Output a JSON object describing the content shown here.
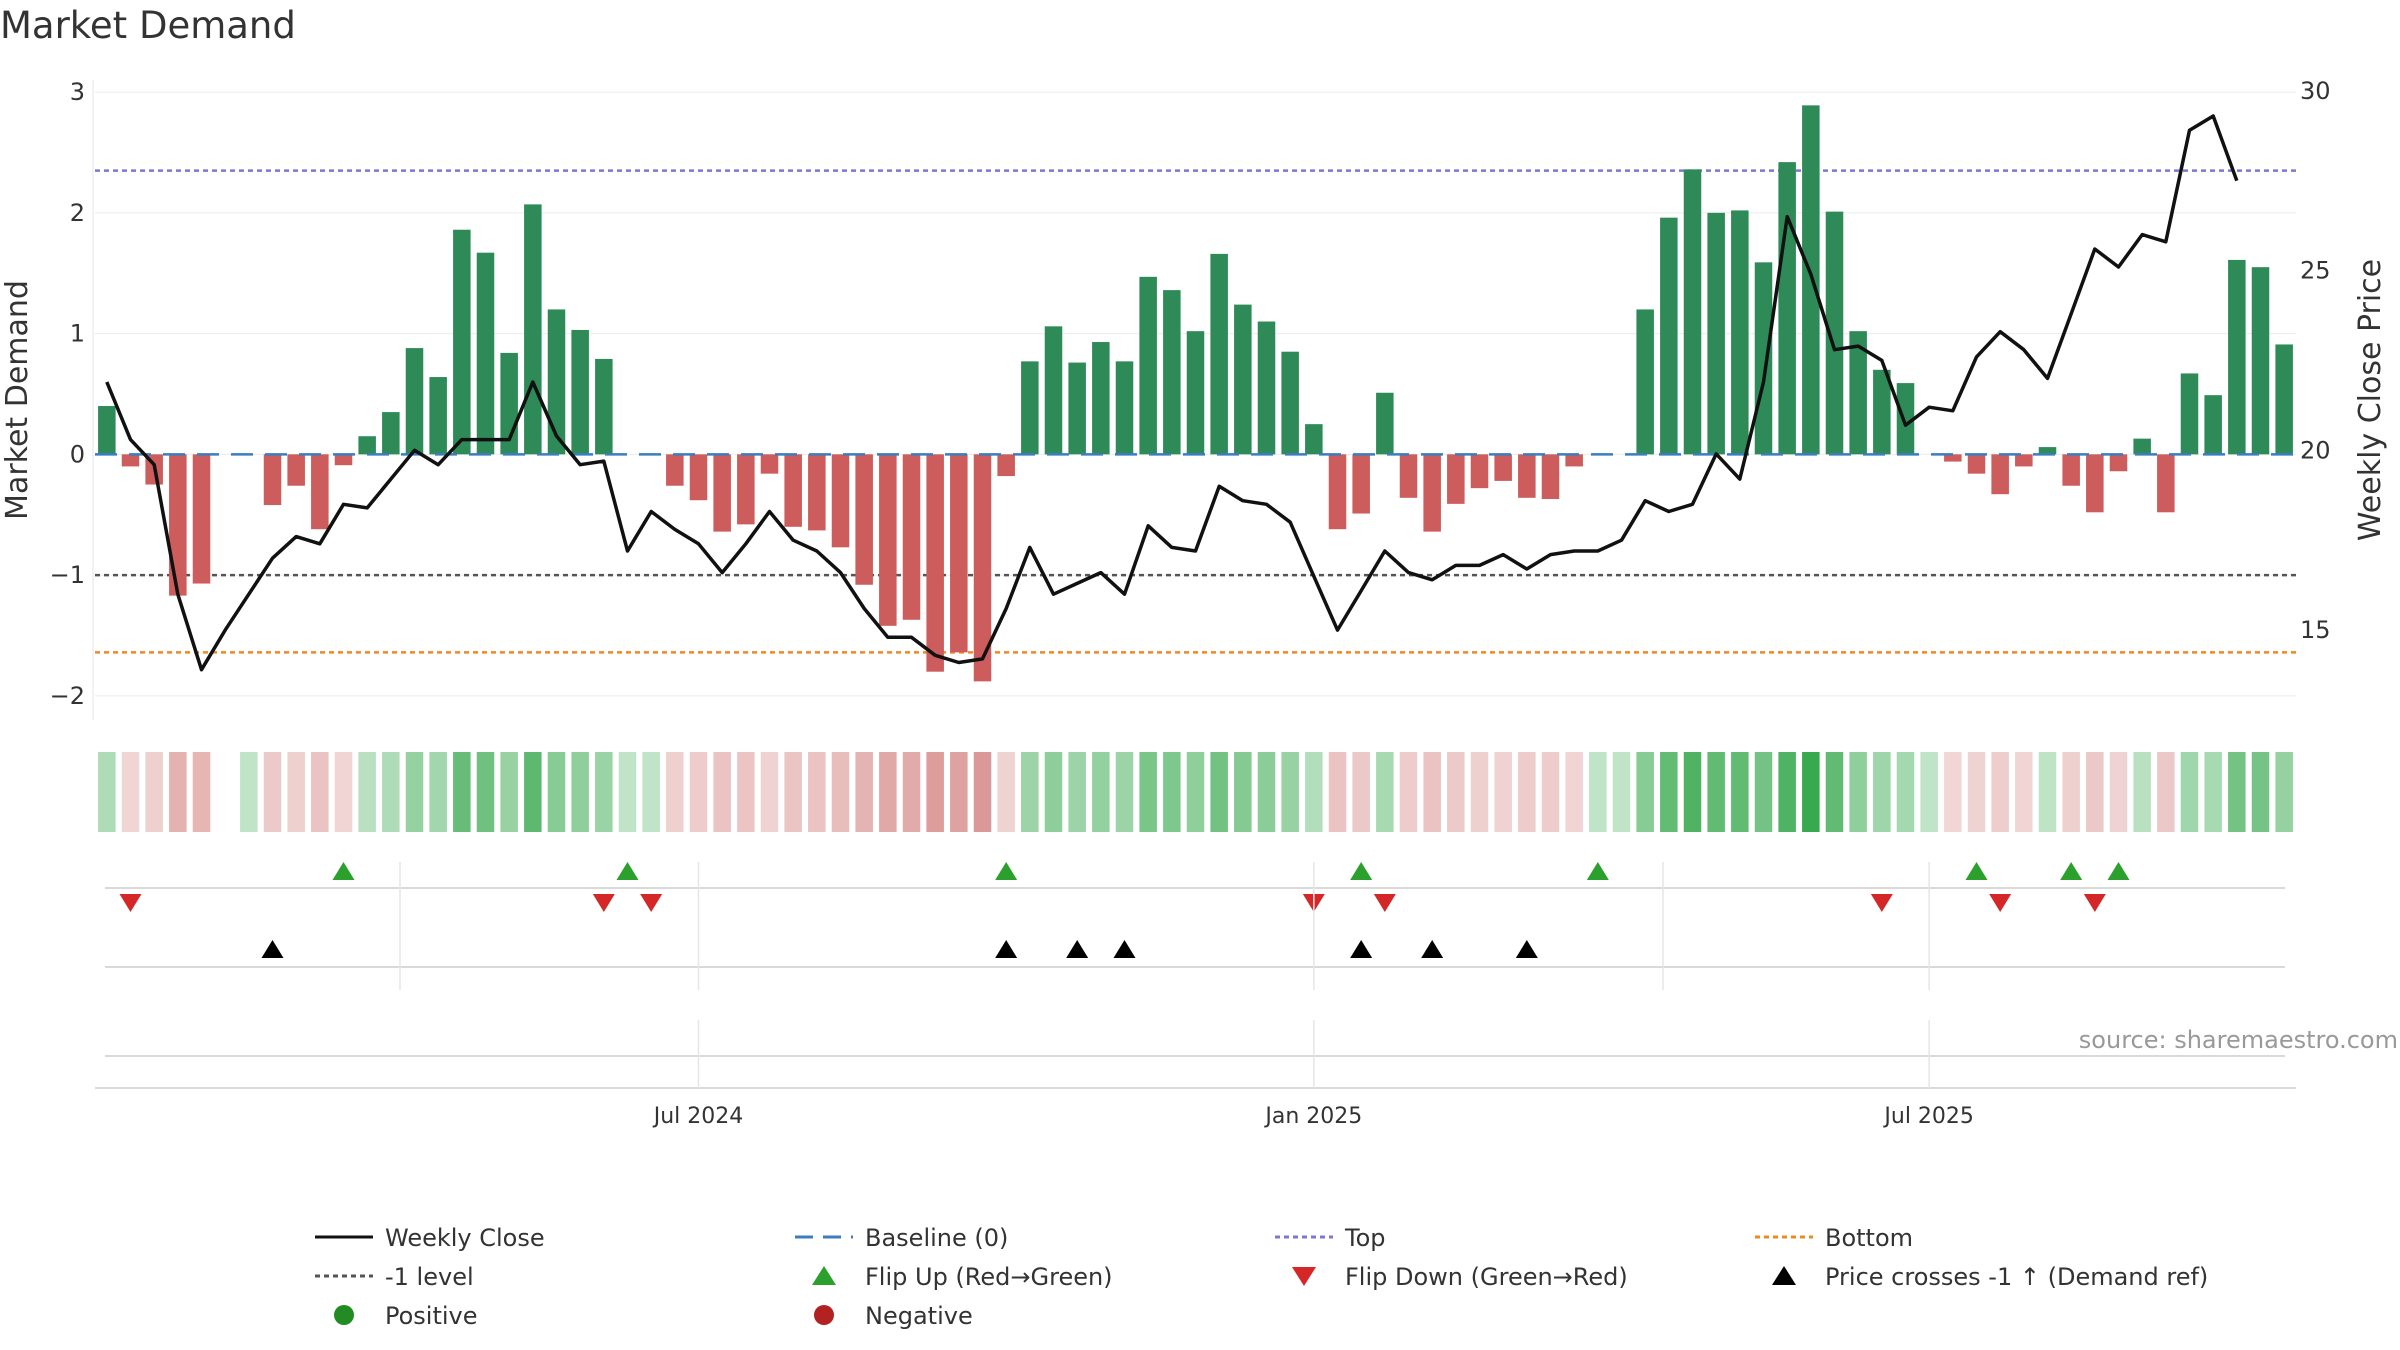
{
  "chart_data": {
    "type": "bar",
    "title": "Market Demand",
    "ylabel_left": "Market Demand",
    "ylabel_right": "Weekly Close Price",
    "ylim_left": [
      -2.2,
      3.1
    ],
    "ylim_right": [
      12.5,
      30.3
    ],
    "yticks_left": [
      3,
      2,
      1,
      0,
      -1,
      -2
    ],
    "ytick_labels_left": [
      "3",
      "2",
      "1",
      "0",
      "−1",
      "−2"
    ],
    "yticks_right": [
      30,
      25,
      20,
      15
    ],
    "ytick_labels_right": [
      "30",
      "25",
      "20",
      "15"
    ],
    "x_labels": [
      "Jul 2024",
      "Jan 2025",
      "Jul 2025"
    ],
    "x_label_week_index": [
      25.5,
      51.5,
      77.5
    ],
    "reference_lines": {
      "baseline": 0,
      "top": 2.35,
      "level": -1,
      "bottom": -1.64
    },
    "demand": [
      0.4,
      -0.1,
      -0.25,
      -1.17,
      -1.07,
      0,
      0.0,
      -0.42,
      -0.26,
      -0.62,
      -0.09,
      0.15,
      0.35,
      0.88,
      0.64,
      1.86,
      1.67,
      0.84,
      2.07,
      1.2,
      1.03,
      0.79,
      0,
      0.0,
      -0.26,
      -0.38,
      -0.64,
      -0.58,
      -0.16,
      -0.6,
      -0.63,
      -0.77,
      -1.08,
      -1.42,
      -1.37,
      -1.8,
      -1.64,
      -1.88,
      -0.18,
      0.77,
      1.06,
      0.76,
      0.93,
      0.77,
      1.47,
      1.36,
      1.02,
      1.66,
      1.24,
      1.1,
      0.85,
      0.25,
      -0.62,
      -0.49,
      0.51,
      -0.36,
      -0.64,
      -0.41,
      -0.28,
      -0.22,
      -0.36,
      -0.37,
      -0.1,
      0.0,
      0.0,
      1.2,
      1.96,
      2.36,
      2.0,
      2.02,
      1.59,
      2.42,
      2.89,
      2.01,
      1.02,
      0.7,
      0.59,
      0.0,
      -0.06,
      -0.16,
      -0.33,
      -0.1,
      0.06,
      -0.26,
      -0.48,
      -0.14,
      0.13,
      -0.48,
      0.67,
      0.49,
      1.61,
      1.55,
      0.91
    ],
    "weekly_close": [
      21.9,
      20.3,
      19.6,
      16.0,
      13.9,
      15.0,
      16.0,
      17.0,
      17.6,
      17.4,
      18.5,
      18.4,
      19.2,
      20.0,
      19.6,
      20.3,
      20.3,
      20.3,
      21.9,
      20.4,
      19.6,
      19.7,
      17.2,
      18.3,
      17.8,
      17.4,
      16.6,
      17.4,
      18.3,
      17.5,
      17.2,
      16.6,
      15.6,
      14.8,
      14.8,
      14.3,
      14.1,
      14.2,
      15.6,
      17.3,
      16.0,
      16.3,
      16.6,
      16.0,
      17.9,
      17.3,
      17.2,
      19.0,
      18.6,
      18.5,
      18.0,
      16.5,
      15.0,
      16.1,
      17.2,
      16.6,
      16.4,
      16.8,
      16.8,
      17.1,
      16.7,
      17.1,
      17.2,
      17.2,
      17.5,
      18.6,
      18.3,
      18.5,
      19.9,
      19.2,
      21.9,
      26.5,
      24.9,
      22.8,
      22.9,
      22.5,
      20.7,
      21.2,
      21.1,
      22.6,
      23.3,
      22.8,
      22.0,
      23.8,
      25.6,
      25.1,
      26.0,
      25.8,
      28.9,
      29.3,
      27.5
    ],
    "flip_up_weeks": [
      10,
      22,
      38,
      53,
      63,
      79,
      83,
      85
    ],
    "flip_down_weeks": [
      1,
      21,
      23,
      51,
      54,
      75,
      80,
      84
    ],
    "price_cross_weeks": [
      7,
      38,
      41,
      43,
      53,
      56,
      60
    ],
    "empty_heat_weeks": [
      5
    ],
    "colors": {
      "positive": "#2e8b57",
      "negative": "#cd5c5c",
      "weekly_close": "#111111",
      "baseline": "#3b7dbf",
      "top": "#7b78d4",
      "level": "#555555",
      "bottom": "#ee8a22",
      "flip_up": "#2ca02c",
      "flip_down": "#d62728",
      "cross": "#000000",
      "heat_green": "#2ca444",
      "heat_red": "#c0504d"
    },
    "legend": [
      {
        "label": "Weekly Close",
        "symbol": "line-solid",
        "color": "#111111"
      },
      {
        "label": "Baseline (0)",
        "symbol": "line-dash",
        "color": "#3b7dbf"
      },
      {
        "label": "Top",
        "symbol": "line-dot",
        "color": "#7b78d4"
      },
      {
        "label": "Bottom",
        "symbol": "line-dot",
        "color": "#ee8a22"
      },
      {
        "label": "-1 level",
        "symbol": "line-dot",
        "color": "#555555"
      },
      {
        "label": "Flip Up (Red→Green)",
        "symbol": "triangle-up",
        "color": "#2ca02c"
      },
      {
        "label": "Flip Down (Green→Red)",
        "symbol": "triangle-down",
        "color": "#d62728"
      },
      {
        "label": "Price crosses -1 ↑ (Demand ref)",
        "symbol": "triangle-up",
        "color": "#000000"
      },
      {
        "label": "Positive",
        "symbol": "circle",
        "color": "#228b22"
      },
      {
        "label": "Negative",
        "symbol": "circle",
        "color": "#b22222"
      }
    ],
    "source": "source: sharemaestro.com"
  }
}
